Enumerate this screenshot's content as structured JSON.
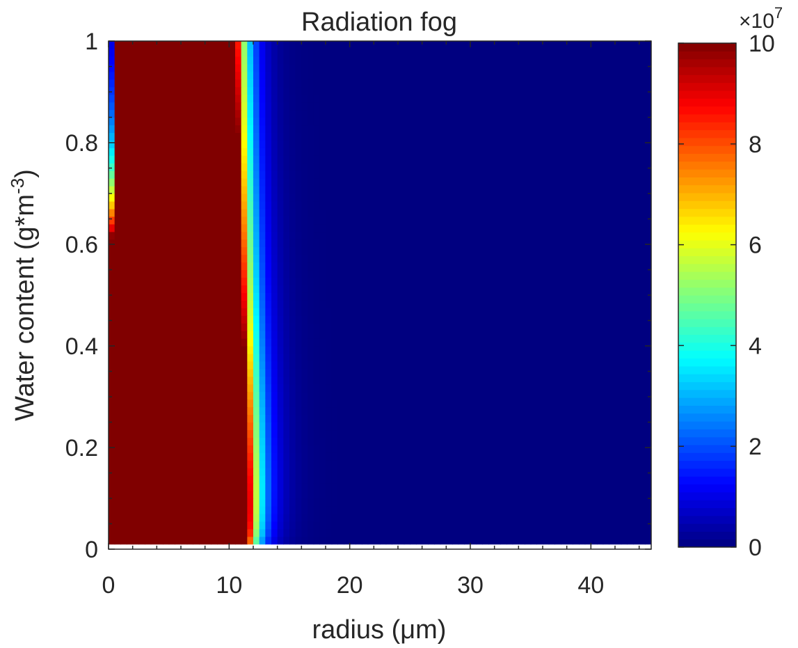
{
  "chart_data": {
    "type": "heatmap",
    "title": "Radiation fog",
    "xlabel": "radius (μm)",
    "ylabel_main": "Water content (g*m",
    "ylabel_sup": "-3",
    "ylabel_end": ")",
    "xlim": [
      0,
      45
    ],
    "ylim": [
      0,
      1
    ],
    "x_ticks": [
      0,
      10,
      20,
      30,
      40
    ],
    "y_ticks": [
      0,
      0.2,
      0.4,
      0.6,
      0.8,
      1
    ],
    "x_tick_labels": [
      "0",
      "10",
      "20",
      "30",
      "40"
    ],
    "y_tick_labels": [
      "0",
      "0.2",
      "0.4",
      "0.6",
      "0.8",
      "1"
    ],
    "data_y_range": [
      0.01,
      1
    ],
    "colorbar": {
      "range": [
        0,
        10
      ],
      "ticks": [
        0,
        2,
        4,
        6,
        8,
        10
      ],
      "tick_labels": [
        "0",
        "2",
        "4",
        "6",
        "8",
        "10"
      ],
      "exponent_base": "×10",
      "exponent_power": "7",
      "colormap": "jet"
    },
    "grid": false,
    "ridge_description": {
      "peak_radius_at_y": [
        [
          0.01,
          1.5
        ],
        [
          1.0,
          3.2
        ]
      ],
      "saturated_above": 10
    }
  }
}
